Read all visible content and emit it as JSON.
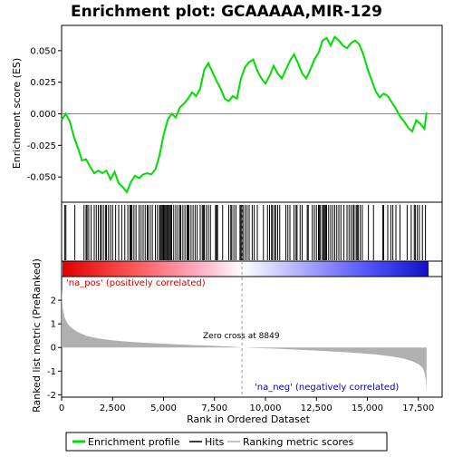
{
  "chart_data": {
    "type": "line",
    "title": "Enrichment plot: GCAAAAA,MIR-129",
    "xlabel": "Rank in Ordered Dataset",
    "ylabel_top": "Enrichment score (ES)",
    "ylabel_bottom": "Ranked list metric (PreRanked)",
    "x_range": [
      0,
      18000
    ],
    "x_ticks": [
      "0",
      "2,500",
      "5,000",
      "7,500",
      "10,000",
      "12,500",
      "15,000",
      "17,500"
    ],
    "x_tick_values": [
      0,
      2500,
      5000,
      7500,
      10000,
      12500,
      15000,
      17500
    ],
    "es_ylim": [
      -0.07,
      0.07
    ],
    "es_ticks": [
      "0.050",
      "0.025",
      "0.000",
      "-0.025",
      "-0.050"
    ],
    "es_tick_values": [
      0.05,
      0.025,
      0.0,
      -0.025,
      -0.05
    ],
    "metric_ylim": [
      -2.1,
      3.0
    ],
    "metric_ticks": [
      "2",
      "1",
      "0",
      "-1",
      "-2"
    ],
    "metric_tick_values": [
      2,
      1,
      0,
      -1,
      -2
    ],
    "enrichment_profile": {
      "name": "Enrichment profile",
      "color": "#00dd00",
      "x": [
        0,
        200,
        400,
        600,
        800,
        1000,
        1200,
        1400,
        1600,
        1800,
        2000,
        2200,
        2400,
        2600,
        2800,
        3000,
        3200,
        3400,
        3600,
        3800,
        4000,
        4200,
        4400,
        4600,
        4800,
        5000,
        5200,
        5400,
        5600,
        5800,
        6000,
        6200,
        6400,
        6600,
        6800,
        7000,
        7200,
        7400,
        7600,
        7800,
        8000,
        8200,
        8400,
        8600,
        8800,
        9000,
        9200,
        9400,
        9600,
        9800,
        10000,
        10200,
        10400,
        10600,
        10800,
        11000,
        11200,
        11400,
        11600,
        11800,
        12000,
        12200,
        12400,
        12600,
        12800,
        13000,
        13200,
        13400,
        13600,
        13800,
        14000,
        14200,
        14400,
        14600,
        14800,
        15000,
        15200,
        15400,
        15600,
        15800,
        16000,
        16200,
        16400,
        16600,
        16800,
        17000,
        17200,
        17400,
        17600,
        17800,
        17900
      ],
      "y": [
        -0.005,
        0.0,
        -0.006,
        -0.018,
        -0.027,
        -0.037,
        -0.036,
        -0.042,
        -0.047,
        -0.045,
        -0.047,
        -0.045,
        -0.052,
        -0.046,
        -0.055,
        -0.058,
        -0.062,
        -0.054,
        -0.049,
        -0.051,
        -0.048,
        -0.047,
        -0.048,
        -0.044,
        -0.033,
        -0.017,
        -0.005,
        0.0,
        -0.003,
        0.005,
        0.008,
        0.012,
        0.017,
        0.014,
        0.02,
        0.035,
        0.04,
        0.033,
        0.026,
        0.02,
        0.012,
        0.01,
        0.014,
        0.012,
        0.028,
        0.037,
        0.041,
        0.043,
        0.034,
        0.028,
        0.024,
        0.03,
        0.038,
        0.032,
        0.028,
        0.035,
        0.042,
        0.047,
        0.04,
        0.032,
        0.028,
        0.035,
        0.043,
        0.048,
        0.058,
        0.06,
        0.054,
        0.061,
        0.058,
        0.054,
        0.052,
        0.056,
        0.058,
        0.055,
        0.047,
        0.036,
        0.027,
        0.018,
        0.013,
        0.016,
        0.014,
        0.009,
        0.004,
        -0.002,
        -0.006,
        -0.011,
        -0.014,
        -0.005,
        -0.008,
        -0.012,
        0.001
      ]
    },
    "hits": {
      "name": "Hits",
      "x": [
        150,
        210,
        650,
        1100,
        1200,
        1250,
        1330,
        1450,
        1600,
        1700,
        1800,
        1900,
        1950,
        2050,
        2150,
        2200,
        2300,
        2400,
        2500,
        2650,
        2800,
        2950,
        3100,
        3250,
        3350,
        3400,
        3450,
        3550,
        3650,
        3800,
        3900,
        4000,
        4100,
        4200,
        4250,
        4350,
        4450,
        4600,
        4700,
        4800,
        4850,
        4900,
        4950,
        5000,
        5050,
        5100,
        5150,
        5200,
        5250,
        5300,
        5350,
        5400,
        5500,
        5600,
        5700,
        5800,
        5850,
        5950,
        6050,
        6150,
        6200,
        6250,
        6350,
        6450,
        6550,
        6650,
        6800,
        6900,
        6950,
        7000,
        7100,
        7200,
        7300,
        7550,
        7600,
        7650,
        7900,
        8200,
        8300,
        8350,
        8450,
        8550,
        8750,
        8800,
        8850,
        8900,
        9000,
        9100,
        9200,
        9350,
        9450,
        9600,
        9900,
        10100,
        10200,
        10300,
        10350,
        10450,
        10500,
        10600,
        10700,
        11000,
        11100,
        11200,
        11400,
        11500,
        11550,
        11700,
        11800,
        12050,
        12100,
        12300,
        12400,
        12500,
        12600,
        12650,
        12700,
        12800,
        12850,
        12900,
        12950,
        13000,
        13100,
        13200,
        13300,
        13400,
        13500,
        13600,
        13700,
        13850,
        14000,
        14100,
        14200,
        14300,
        14350,
        14450,
        14500,
        14550,
        14650,
        14750,
        15050,
        15300,
        15750,
        15800,
        16000,
        16150,
        16250,
        16400,
        16600,
        16950,
        17150,
        17300,
        17350,
        17450,
        17550,
        17700,
        17850
      ]
    },
    "ranking_metric": {
      "name": "Ranking metric scores",
      "color": "#b0b0b0",
      "x": [
        0,
        50,
        150,
        300,
        500,
        800,
        1200,
        1800,
        2500,
        3500,
        4500,
        5500,
        6500,
        7500,
        8500,
        8849,
        9500,
        10500,
        11500,
        12500,
        13500,
        14500,
        15500,
        16200,
        16800,
        17200,
        17500,
        17700,
        17800,
        17870,
        17900
      ],
      "y": [
        2.5,
        1.7,
        1.25,
        1.0,
        0.82,
        0.65,
        0.5,
        0.38,
        0.3,
        0.23,
        0.18,
        0.14,
        0.1,
        0.07,
        0.03,
        0.0,
        -0.02,
        -0.05,
        -0.09,
        -0.13,
        -0.18,
        -0.23,
        -0.3,
        -0.38,
        -0.47,
        -0.58,
        -0.7,
        -0.85,
        -1.05,
        -1.4,
        -1.85
      ]
    },
    "zero_cross": 8849,
    "annotations": {
      "zero_cross_label": "Zero cross at 8849",
      "pos_label": "'na_pos' (positively correlated)",
      "neg_label": "'na_neg' (negatively correlated)"
    },
    "legend": {
      "items": [
        "Enrichment profile",
        "Hits",
        "Ranking metric scores"
      ],
      "placement": "bottom"
    },
    "colors": {
      "profile": "#00dd00",
      "hits": "#000000",
      "metric": "#b0b0b0",
      "pos_annot": "#cc0000",
      "neg_annot": "#0000cc",
      "heat_pos": "#ff0000",
      "heat_mid": "#ffffff",
      "heat_neg": "#0000ff"
    }
  }
}
